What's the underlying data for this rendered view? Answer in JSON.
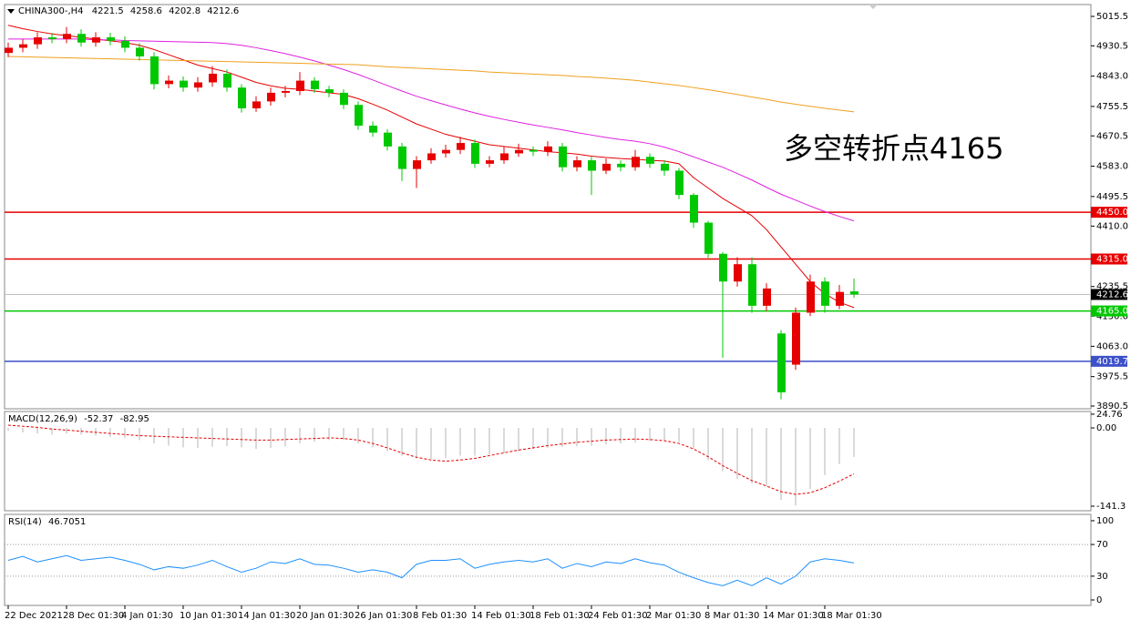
{
  "chart_data": [
    {
      "type": "candlestick",
      "title": "CHINA300-,H4",
      "categories": [
        "22 Dec 2021",
        null,
        null,
        null,
        "28 Dec 01:30",
        null,
        null,
        null,
        "4 Jan 01:30",
        null,
        null,
        null,
        "10 Jan 01:30",
        null,
        null,
        null,
        "14 Jan 01:30",
        null,
        null,
        null,
        "20 Jan 01:30",
        null,
        null,
        null,
        "26 Jan 01:30",
        null,
        null,
        null,
        "8 Feb 01:30",
        null,
        null,
        null,
        "14 Feb 01:30",
        null,
        null,
        null,
        "18 Feb 01:30",
        null,
        null,
        null,
        "24 Feb 01:30",
        null,
        null,
        null,
        "2 Mar 01:30",
        null,
        null,
        null,
        "8 Mar 01:30",
        null,
        null,
        null,
        "14 Mar 01:30",
        null,
        null,
        null,
        "18 Mar 01:30",
        null,
        null
      ],
      "open": [
        4910,
        4925,
        4935,
        4955,
        4950,
        4965,
        4940,
        4955,
        4945,
        4925,
        4900,
        4820,
        4830,
        4810,
        4825,
        4850,
        4810,
        4750,
        4770,
        4795,
        4800,
        4830,
        4805,
        4795,
        4760,
        4700,
        4680,
        4640,
        4575,
        4600,
        4620,
        4630,
        4650,
        4590,
        4600,
        4620,
        4630,
        4625,
        4640,
        4580,
        4600,
        4570,
        4590,
        4580,
        4610,
        4590,
        4570,
        4500,
        4420,
        4330,
        4250,
        4300,
        4180,
        4100,
        4010,
        4160,
        4250,
        4180,
        4221.5
      ],
      "high": [
        4940,
        4950,
        4970,
        4968,
        4985,
        4978,
        4970,
        4968,
        4958,
        4938,
        4912,
        4845,
        4842,
        4840,
        4872,
        4862,
        4820,
        4785,
        4810,
        4815,
        4855,
        4840,
        4815,
        4805,
        4770,
        4712,
        4690,
        4650,
        4612,
        4635,
        4645,
        4668,
        4660,
        4612,
        4640,
        4648,
        4640,
        4655,
        4650,
        4612,
        4610,
        4605,
        4600,
        4630,
        4620,
        4600,
        4578,
        4505,
        4425,
        4335,
        4320,
        4320,
        4245,
        4110,
        4175,
        4270,
        4262,
        4240,
        4258.6
      ],
      "low": [
        4898,
        4912,
        4922,
        4938,
        4938,
        4928,
        4928,
        4932,
        4912,
        4888,
        4805,
        4808,
        4798,
        4798,
        4812,
        4798,
        4738,
        4740,
        4758,
        4782,
        4788,
        4795,
        4782,
        4748,
        4688,
        4668,
        4628,
        4540,
        4520,
        4590,
        4608,
        4618,
        4578,
        4580,
        4590,
        4610,
        4612,
        4612,
        4568,
        4568,
        4500,
        4560,
        4568,
        4570,
        4578,
        4555,
        4488,
        4405,
        4318,
        4030,
        4235,
        4160,
        4165,
        3910,
        3995,
        4150,
        4160,
        4170,
        4202.8
      ],
      "close": [
        4925,
        4935,
        4955,
        4950,
        4965,
        4940,
        4955,
        4945,
        4925,
        4900,
        4820,
        4830,
        4810,
        4825,
        4850,
        4810,
        4750,
        4770,
        4795,
        4800,
        4830,
        4805,
        4795,
        4760,
        4700,
        4680,
        4640,
        4575,
        4600,
        4620,
        4630,
        4650,
        4590,
        4600,
        4620,
        4630,
        4625,
        4640,
        4580,
        4600,
        4570,
        4590,
        4580,
        4610,
        4590,
        4570,
        4500,
        4420,
        4330,
        4250,
        4300,
        4180,
        4230,
        3930,
        4160,
        4250,
        4180,
        4220,
        4212.6
      ],
      "up_color": "#e60000",
      "down_color": "#00c800",
      "series": [
        {
          "color": "#e60000",
          "values": [
            4990,
            4980,
            4972,
            4965,
            4960,
            4955,
            4950,
            4945,
            4940,
            4932,
            4920,
            4905,
            4890,
            4875,
            4865,
            4855,
            4840,
            4825,
            4815,
            4808,
            4805,
            4800,
            4795,
            4790,
            4778,
            4762,
            4745,
            4725,
            4705,
            4690,
            4675,
            4665,
            4655,
            4645,
            4640,
            4635,
            4630,
            4625,
            4622,
            4618,
            4612,
            4608,
            4605,
            4603,
            4600,
            4598,
            4590,
            4550,
            4520,
            4490,
            4465,
            4440,
            4400,
            4350,
            4300,
            4250,
            4215,
            4190,
            4175
          ]
        },
        {
          "color": "#e020e0",
          "values": [
            4950,
            4950,
            4950,
            4950,
            4950,
            4950,
            4948,
            4948,
            4946,
            4945,
            4944,
            4943,
            4942,
            4941,
            4940,
            4937,
            4932,
            4925,
            4917,
            4908,
            4898,
            4887,
            4875,
            4862,
            4848,
            4832,
            4816,
            4800,
            4785,
            4772,
            4760,
            4748,
            4737,
            4727,
            4718,
            4710,
            4702,
            4695,
            4688,
            4680,
            4673,
            4666,
            4660,
            4655,
            4648,
            4638,
            4625,
            4610,
            4595,
            4580,
            4562,
            4543,
            4522,
            4502,
            4485,
            4468,
            4452,
            4438,
            4425
          ]
        },
        {
          "color": "#f0a020",
          "values": [
            4900,
            4899,
            4898,
            4897,
            4896,
            4895,
            4894,
            4893,
            4892,
            4891,
            4890,
            4889,
            4888,
            4887,
            4886,
            4885,
            4884,
            4883,
            4882,
            4881,
            4880,
            4879,
            4878,
            4877,
            4876,
            4873,
            4870,
            4868,
            4866,
            4864,
            4862,
            4860,
            4858,
            4855,
            4853,
            4851,
            4849,
            4847,
            4845,
            4842,
            4840,
            4837,
            4834,
            4831,
            4826,
            4821,
            4816,
            4810,
            4804,
            4797,
            4790,
            4783,
            4776,
            4768,
            4762,
            4756,
            4750,
            4745,
            4740
          ]
        }
      ],
      "levels": [
        {
          "value": 4450,
          "label": "4450.0",
          "color": "#e60000"
        },
        {
          "value": 4315,
          "label": "4315.0",
          "color": "#e60000"
        },
        {
          "value": 4165,
          "label": "4165.0",
          "color": "#00c800"
        },
        {
          "value": 4019.7,
          "color": "#3c50c8"
        }
      ],
      "annotation": "多空转折点4165",
      "annotation_color": "#e60000",
      "ylim": [
        3882.6,
        5049.7
      ],
      "yticks": [
        5015.5,
        4930.5,
        {
          "value": 4843,
          "label": "4843.0"
        },
        4755.5,
        4670.5,
        {
          "value": 4583,
          "label": "4583.0"
        },
        4495.5,
        {
          "value": 4410,
          "label": "4410.0"
        },
        4235.5,
        {
          "value": 4150,
          "label": "4150.0"
        },
        {
          "value": 4063,
          "label": "4063.0"
        },
        3975.5,
        3890.5
      ]
    },
    {
      "type": "macd",
      "title": "MACD(12,26,9)",
      "series": [
        {
          "color": "#b4b4b4",
          "values": [
            -5,
            -8,
            -10,
            -12,
            -10,
            -12,
            -14,
            -16,
            -18,
            -22,
            -28,
            -32,
            -35,
            -36,
            -34,
            -33,
            -35,
            -38,
            -36,
            -33,
            -28,
            -25,
            -22,
            -22,
            -28,
            -35,
            -42,
            -50,
            -55,
            -56,
            -54,
            -50,
            -50,
            -48,
            -45,
            -42,
            -38,
            -36,
            -34,
            -33,
            -32,
            -30,
            -28,
            -26,
            -24,
            -22,
            -25,
            -38,
            -58,
            -78,
            -92,
            -100,
            -105,
            -130,
            -140,
            -110,
            -85,
            -65,
            -52.37
          ]
        },
        {
          "color": "#e60000",
          "values": [
            5,
            3,
            1,
            -2,
            -4,
            -6,
            -8,
            -10,
            -12,
            -14,
            -15,
            -16,
            -17,
            -18,
            -19,
            -20,
            -21,
            -22,
            -22,
            -21,
            -20,
            -19,
            -18,
            -19,
            -22,
            -28,
            -36,
            -45,
            -53,
            -58,
            -60,
            -58,
            -55,
            -50,
            -45,
            -40,
            -36,
            -32,
            -29,
            -26,
            -24,
            -22,
            -21,
            -20,
            -21,
            -23,
            -28,
            -38,
            -52,
            -68,
            -82,
            -95,
            -105,
            -115,
            -120,
            -117,
            -108,
            -96,
            -82.95
          ]
        }
      ],
      "ylim": [
        -149.5,
        29.6
      ],
      "yticks": [
        24.76,
        {
          "value": 0,
          "label": "0.00"
        },
        -141.3
      ]
    },
    {
      "type": "line",
      "title": "RSI(14)",
      "color": "#1e90ff",
      "values": [
        50,
        55,
        48,
        52,
        56,
        50,
        52,
        54,
        50,
        45,
        38,
        42,
        40,
        44,
        50,
        42,
        35,
        40,
        48,
        46,
        52,
        45,
        44,
        40,
        35,
        38,
        35,
        28,
        45,
        50,
        50,
        52,
        40,
        45,
        48,
        50,
        48,
        52,
        40,
        46,
        42,
        48,
        46,
        52,
        47,
        44,
        35,
        28,
        22,
        18,
        25,
        18,
        28,
        20,
        30,
        48,
        52,
        50,
        46.7051
      ],
      "ylim": [
        -6.9,
        108
      ],
      "yticks": [
        100,
        70,
        30,
        0
      ]
    }
  ]
}
